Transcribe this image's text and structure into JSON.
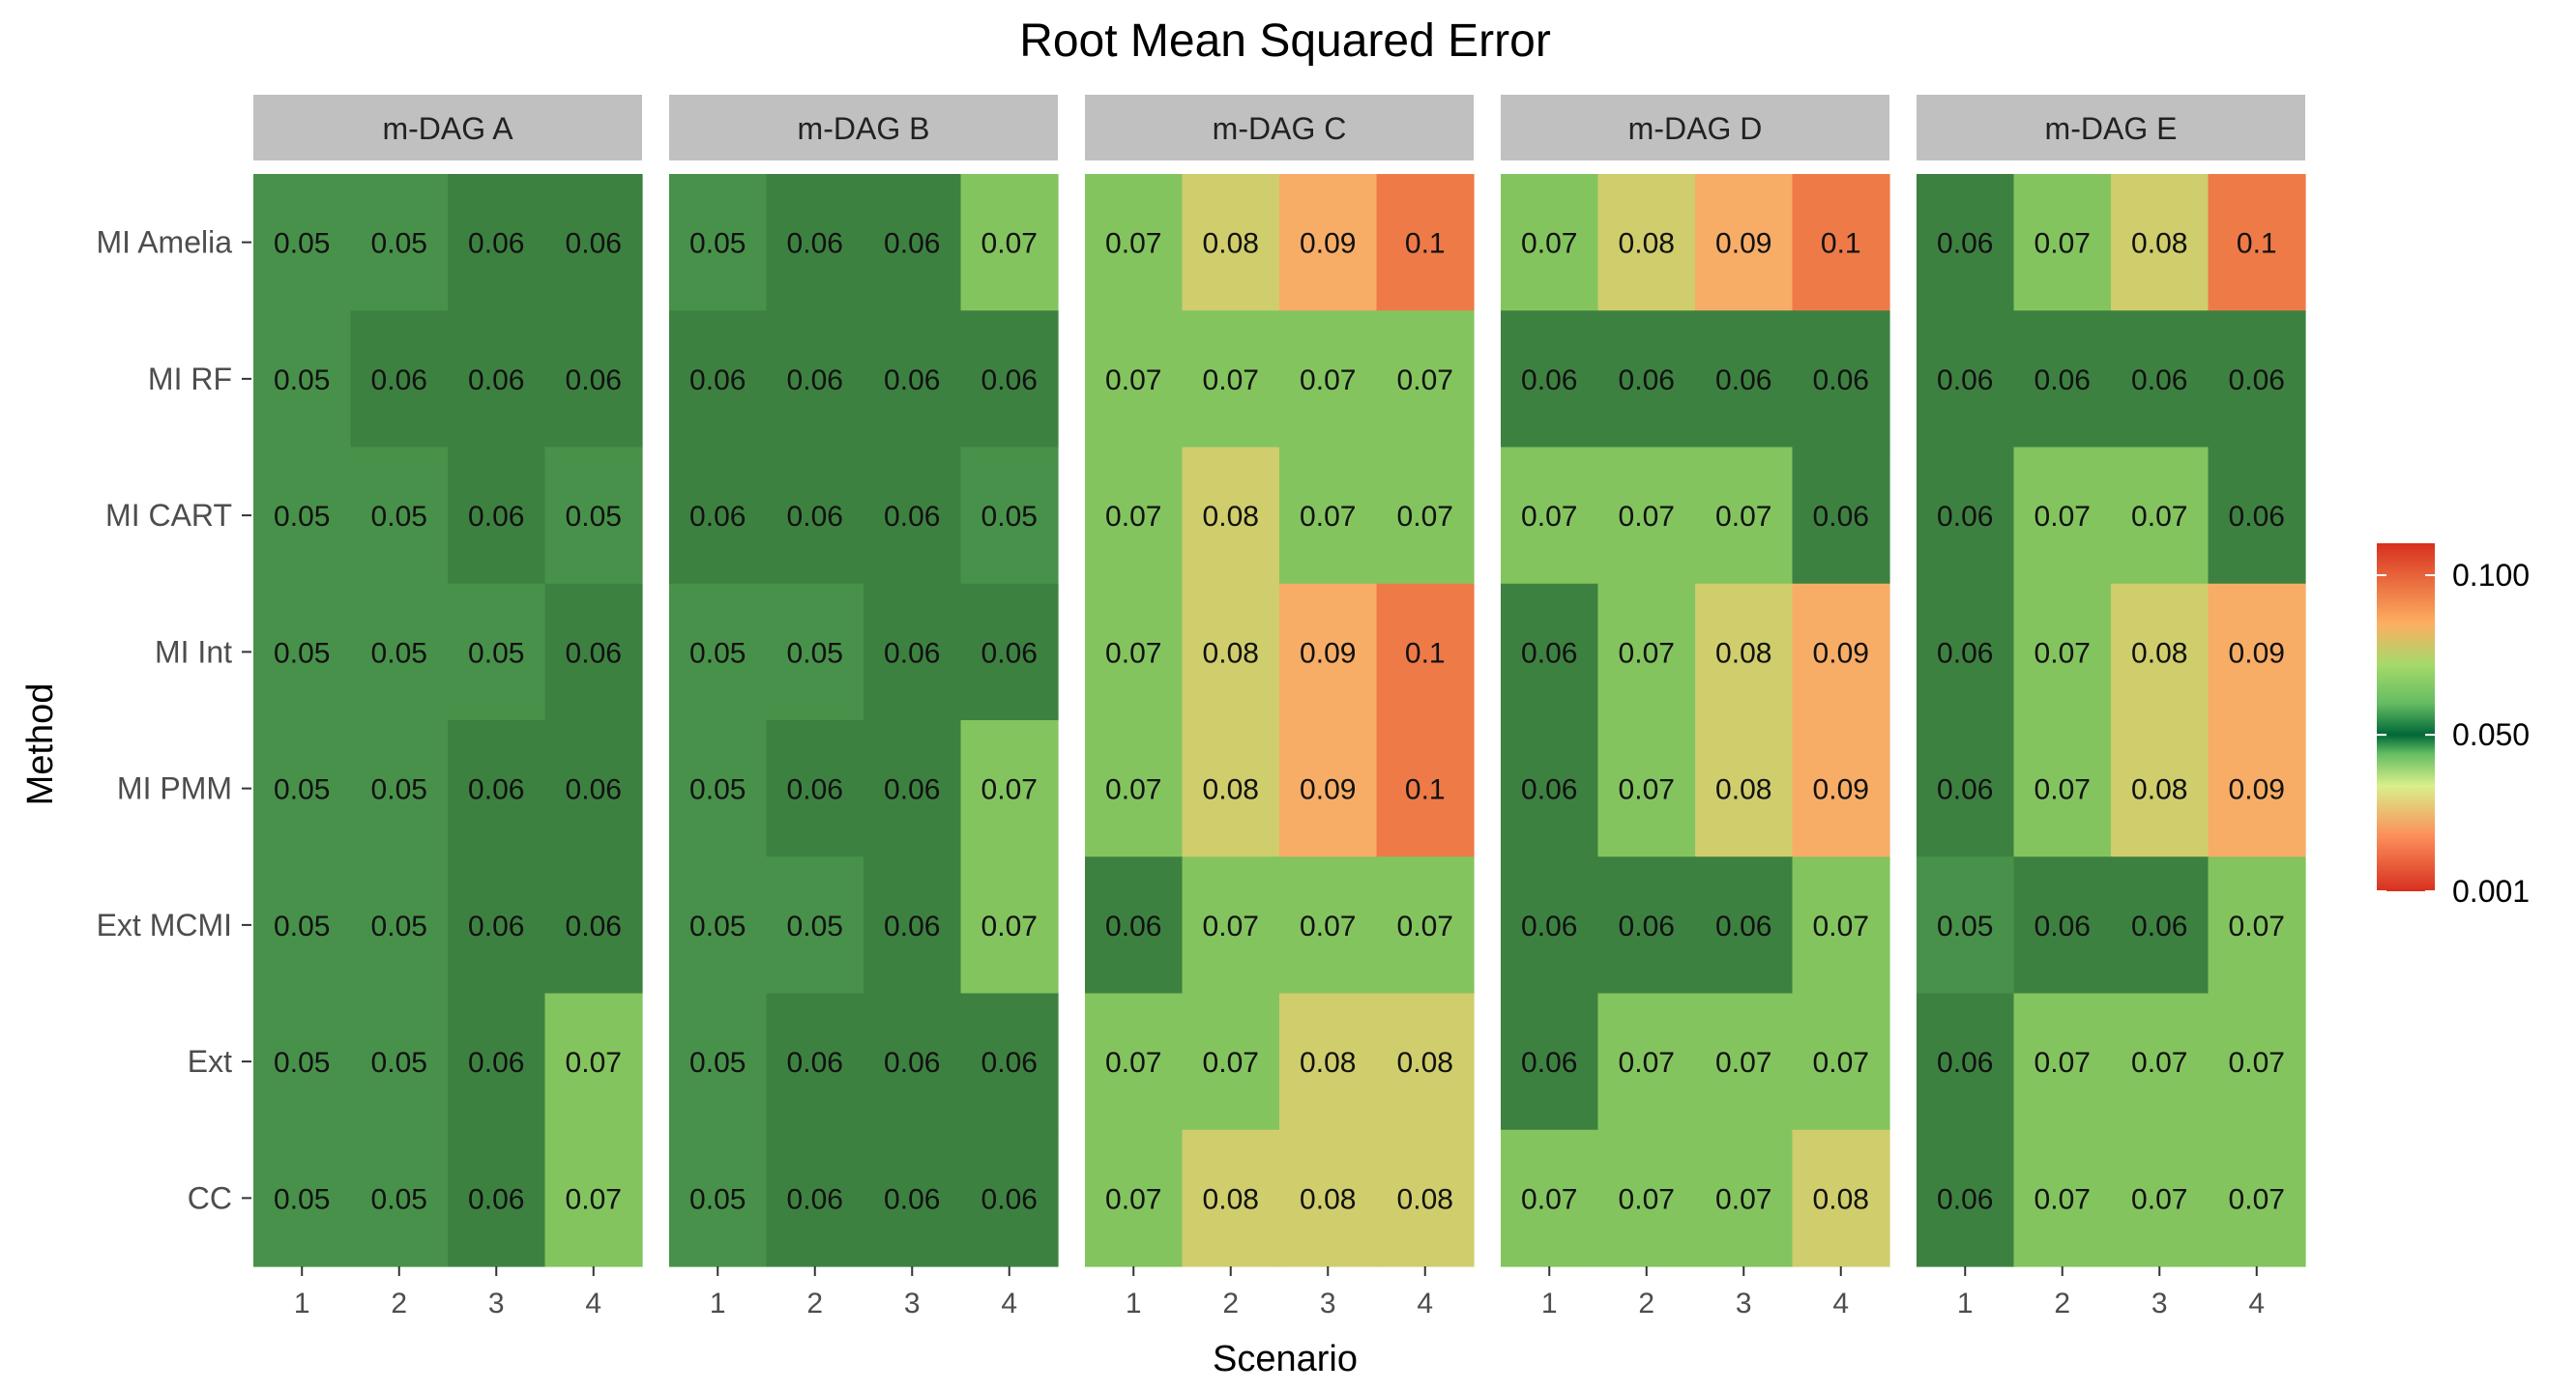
{
  "chart_data": {
    "type": "heatmap",
    "title": "Root Mean Squared Error",
    "xlabel": "Scenario",
    "ylabel": "Method",
    "x_ticks": [
      "1",
      "2",
      "3",
      "4"
    ],
    "methods": [
      "MI Amelia",
      "MI RF",
      "MI CART",
      "MI Int",
      "MI PMM",
      "Ext MCMI",
      "Ext",
      "CC"
    ],
    "legend": {
      "position": "right",
      "ticks": [
        "0.100",
        "0.050",
        "0.001"
      ],
      "tick_values": [
        0.1,
        0.05,
        0.001
      ],
      "range": [
        0.001,
        0.11
      ],
      "colors": [
        {
          "value": 0.001,
          "color": "#d7301f"
        },
        {
          "value": 0.018,
          "color": "#fc8d59"
        },
        {
          "value": 0.034,
          "color": "#d9ef8b"
        },
        {
          "value": 0.044,
          "color": "#66bd63"
        },
        {
          "value": 0.05,
          "color": "#006837"
        },
        {
          "value": 0.06,
          "color": "#66bd63"
        },
        {
          "value": 0.072,
          "color": "#a6d96a"
        },
        {
          "value": 0.085,
          "color": "#fdae61"
        },
        {
          "value": 0.11,
          "color": "#d7301f"
        }
      ]
    },
    "cell_colors": {
      "0.05": "#48914a",
      "0.06": "#3d8141",
      "0.07": "#83c45f",
      "0.08": "#d0cd6c",
      "0.09": "#f7ad66",
      "0.1": "#ee7a48"
    },
    "panels": [
      {
        "name": "m-DAG A",
        "values": [
          [
            "0.05",
            "0.05",
            "0.06",
            "0.06"
          ],
          [
            "0.05",
            "0.06",
            "0.06",
            "0.06"
          ],
          [
            "0.05",
            "0.05",
            "0.06",
            "0.05"
          ],
          [
            "0.05",
            "0.05",
            "0.05",
            "0.06"
          ],
          [
            "0.05",
            "0.05",
            "0.06",
            "0.06"
          ],
          [
            "0.05",
            "0.05",
            "0.06",
            "0.06"
          ],
          [
            "0.05",
            "0.05",
            "0.06",
            "0.07"
          ],
          [
            "0.05",
            "0.05",
            "0.06",
            "0.07"
          ]
        ]
      },
      {
        "name": "m-DAG B",
        "values": [
          [
            "0.05",
            "0.06",
            "0.06",
            "0.07"
          ],
          [
            "0.06",
            "0.06",
            "0.06",
            "0.06"
          ],
          [
            "0.06",
            "0.06",
            "0.06",
            "0.05"
          ],
          [
            "0.05",
            "0.05",
            "0.06",
            "0.06"
          ],
          [
            "0.05",
            "0.06",
            "0.06",
            "0.07"
          ],
          [
            "0.05",
            "0.05",
            "0.06",
            "0.07"
          ],
          [
            "0.05",
            "0.06",
            "0.06",
            "0.06"
          ],
          [
            "0.05",
            "0.06",
            "0.06",
            "0.06"
          ]
        ]
      },
      {
        "name": "m-DAG C",
        "values": [
          [
            "0.07",
            "0.08",
            "0.09",
            "0.1"
          ],
          [
            "0.07",
            "0.07",
            "0.07",
            "0.07"
          ],
          [
            "0.07",
            "0.08",
            "0.07",
            "0.07"
          ],
          [
            "0.07",
            "0.08",
            "0.09",
            "0.1"
          ],
          [
            "0.07",
            "0.08",
            "0.09",
            "0.1"
          ],
          [
            "0.06",
            "0.07",
            "0.07",
            "0.07"
          ],
          [
            "0.07",
            "0.07",
            "0.08",
            "0.08"
          ],
          [
            "0.07",
            "0.08",
            "0.08",
            "0.08"
          ]
        ]
      },
      {
        "name": "m-DAG D",
        "values": [
          [
            "0.07",
            "0.08",
            "0.09",
            "0.1"
          ],
          [
            "0.06",
            "0.06",
            "0.06",
            "0.06"
          ],
          [
            "0.07",
            "0.07",
            "0.07",
            "0.06"
          ],
          [
            "0.06",
            "0.07",
            "0.08",
            "0.09"
          ],
          [
            "0.06",
            "0.07",
            "0.08",
            "0.09"
          ],
          [
            "0.06",
            "0.06",
            "0.06",
            "0.07"
          ],
          [
            "0.06",
            "0.07",
            "0.07",
            "0.07"
          ],
          [
            "0.07",
            "0.07",
            "0.07",
            "0.08"
          ]
        ]
      },
      {
        "name": "m-DAG E",
        "values": [
          [
            "0.06",
            "0.07",
            "0.08",
            "0.1"
          ],
          [
            "0.06",
            "0.06",
            "0.06",
            "0.06"
          ],
          [
            "0.06",
            "0.07",
            "0.07",
            "0.06"
          ],
          [
            "0.06",
            "0.07",
            "0.08",
            "0.09"
          ],
          [
            "0.06",
            "0.07",
            "0.08",
            "0.09"
          ],
          [
            "0.05",
            "0.06",
            "0.06",
            "0.07"
          ],
          [
            "0.06",
            "0.07",
            "0.07",
            "0.07"
          ],
          [
            "0.06",
            "0.07",
            "0.07",
            "0.07"
          ]
        ]
      }
    ]
  }
}
